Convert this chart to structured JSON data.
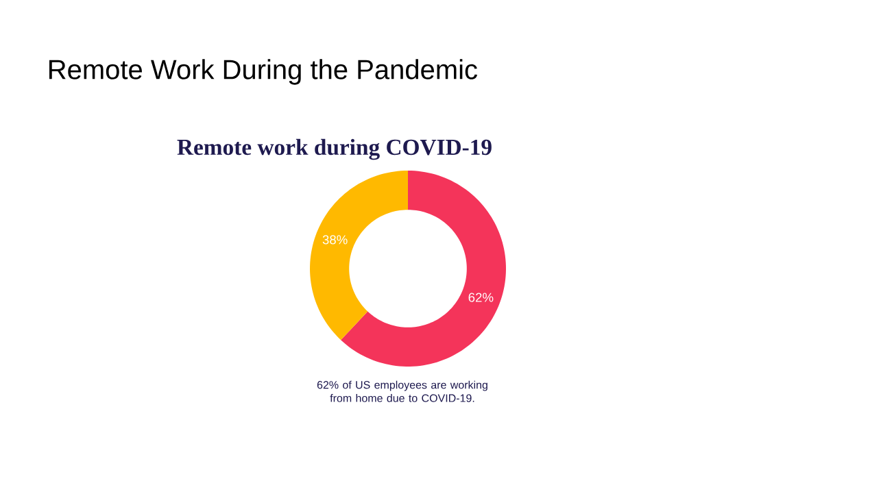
{
  "chart_data": {
    "type": "donut",
    "title": "Remote Work During the Pandemic",
    "subtitle": "Remote work during COVID-19",
    "categories": [
      null,
      null
    ],
    "values": [
      62,
      38
    ],
    "colors": [
      "#f4345a",
      "#ffb900"
    ],
    "value_labels": [
      "62%",
      "38%"
    ],
    "annotations": [
      "62% of US employees are working from home due to COVID-19."
    ]
  }
}
